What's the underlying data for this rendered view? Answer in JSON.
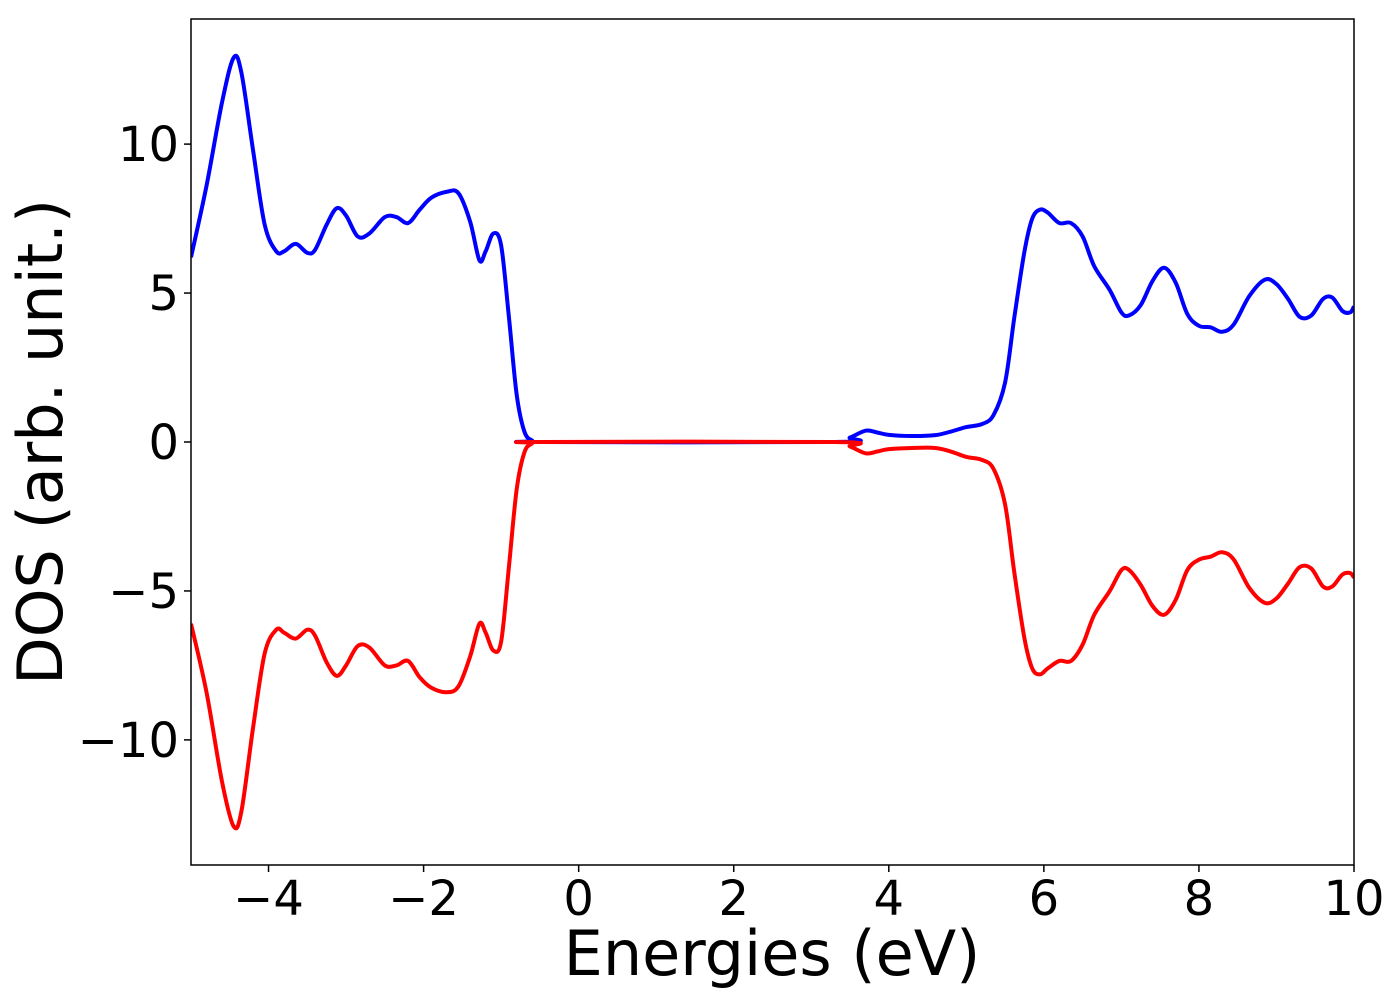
{
  "chart_data": {
    "type": "line",
    "title": "",
    "xlabel": "Energies (eV)",
    "ylabel": "DOS (arb. unit.)",
    "xlim": [
      -5,
      10
    ],
    "ylim": [
      -14.2,
      14.2
    ],
    "grid": false,
    "legend": "none",
    "x_ticks": [
      -4,
      -2,
      0,
      2,
      4,
      6,
      8,
      10
    ],
    "x_tick_labels": [
      "−4",
      "−2",
      "0",
      "2",
      "4",
      "6",
      "8",
      "10"
    ],
    "y_ticks": [
      -10,
      -5,
      0,
      5,
      10
    ],
    "y_tick_labels": [
      "−10",
      "−5",
      "0",
      "5",
      "10"
    ],
    "series": [
      {
        "color": "#0000ff",
        "points": [
          [
            -5.0,
            6.2
          ],
          [
            -4.8,
            8.6
          ],
          [
            -4.6,
            11.4
          ],
          [
            -4.45,
            12.9
          ],
          [
            -4.35,
            12.4
          ],
          [
            -4.2,
            9.8
          ],
          [
            -4.05,
            7.3
          ],
          [
            -3.9,
            6.4
          ],
          [
            -3.8,
            6.4
          ],
          [
            -3.65,
            6.65
          ],
          [
            -3.5,
            6.35
          ],
          [
            -3.4,
            6.45
          ],
          [
            -3.25,
            7.3
          ],
          [
            -3.12,
            7.85
          ],
          [
            -3.0,
            7.6
          ],
          [
            -2.85,
            6.9
          ],
          [
            -2.7,
            7.0
          ],
          [
            -2.5,
            7.55
          ],
          [
            -2.35,
            7.55
          ],
          [
            -2.2,
            7.35
          ],
          [
            -2.05,
            7.8
          ],
          [
            -1.9,
            8.2
          ],
          [
            -1.7,
            8.4
          ],
          [
            -1.55,
            8.35
          ],
          [
            -1.4,
            7.4
          ],
          [
            -1.28,
            6.1
          ],
          [
            -1.2,
            6.4
          ],
          [
            -1.1,
            7.0
          ],
          [
            -1.0,
            6.6
          ],
          [
            -0.9,
            4.2
          ],
          [
            -0.8,
            1.6
          ],
          [
            -0.7,
            0.35
          ],
          [
            -0.6,
            0.05
          ],
          [
            -0.5,
            0.0
          ],
          [
            3.3,
            0.0
          ],
          [
            3.5,
            0.15
          ],
          [
            3.7,
            0.38
          ],
          [
            3.85,
            0.32
          ],
          [
            4.0,
            0.24
          ],
          [
            4.3,
            0.2
          ],
          [
            4.6,
            0.23
          ],
          [
            4.8,
            0.35
          ],
          [
            5.0,
            0.5
          ],
          [
            5.2,
            0.6
          ],
          [
            5.35,
            0.9
          ],
          [
            5.5,
            2.0
          ],
          [
            5.62,
            4.2
          ],
          [
            5.75,
            6.4
          ],
          [
            5.85,
            7.5
          ],
          [
            5.95,
            7.8
          ],
          [
            6.05,
            7.7
          ],
          [
            6.2,
            7.35
          ],
          [
            6.35,
            7.35
          ],
          [
            6.5,
            6.9
          ],
          [
            6.65,
            5.9
          ],
          [
            6.85,
            5.1
          ],
          [
            7.0,
            4.35
          ],
          [
            7.1,
            4.25
          ],
          [
            7.25,
            4.6
          ],
          [
            7.4,
            5.4
          ],
          [
            7.55,
            5.85
          ],
          [
            7.7,
            5.35
          ],
          [
            7.85,
            4.3
          ],
          [
            8.0,
            3.9
          ],
          [
            8.15,
            3.85
          ],
          [
            8.3,
            3.7
          ],
          [
            8.45,
            3.95
          ],
          [
            8.65,
            4.9
          ],
          [
            8.85,
            5.45
          ],
          [
            9.0,
            5.3
          ],
          [
            9.15,
            4.8
          ],
          [
            9.3,
            4.2
          ],
          [
            9.45,
            4.25
          ],
          [
            9.6,
            4.8
          ],
          [
            9.72,
            4.85
          ],
          [
            9.85,
            4.4
          ],
          [
            9.95,
            4.35
          ],
          [
            10.0,
            4.55
          ]
        ]
      },
      {
        "color": "#ff0000",
        "points": [
          [
            -5.0,
            -6.1
          ],
          [
            -4.8,
            -8.4
          ],
          [
            -4.6,
            -11.4
          ],
          [
            -4.45,
            -12.9
          ],
          [
            -4.35,
            -12.4
          ],
          [
            -4.2,
            -9.6
          ],
          [
            -4.05,
            -7.1
          ],
          [
            -3.9,
            -6.3
          ],
          [
            -3.8,
            -6.4
          ],
          [
            -3.65,
            -6.6
          ],
          [
            -3.5,
            -6.3
          ],
          [
            -3.4,
            -6.5
          ],
          [
            -3.25,
            -7.4
          ],
          [
            -3.12,
            -7.85
          ],
          [
            -3.0,
            -7.5
          ],
          [
            -2.85,
            -6.85
          ],
          [
            -2.7,
            -6.9
          ],
          [
            -2.5,
            -7.5
          ],
          [
            -2.35,
            -7.5
          ],
          [
            -2.2,
            -7.35
          ],
          [
            -2.05,
            -7.9
          ],
          [
            -1.9,
            -8.25
          ],
          [
            -1.7,
            -8.4
          ],
          [
            -1.55,
            -8.2
          ],
          [
            -1.4,
            -7.2
          ],
          [
            -1.28,
            -6.1
          ],
          [
            -1.2,
            -6.4
          ],
          [
            -1.1,
            -7.0
          ],
          [
            -1.0,
            -6.7
          ],
          [
            -0.9,
            -4.2
          ],
          [
            -0.8,
            -1.6
          ],
          [
            -0.7,
            -0.35
          ],
          [
            -0.6,
            -0.05
          ],
          [
            -0.5,
            0.0
          ],
          [
            3.3,
            0.0
          ],
          [
            3.5,
            -0.15
          ],
          [
            3.7,
            -0.38
          ],
          [
            3.85,
            -0.32
          ],
          [
            4.0,
            -0.24
          ],
          [
            4.3,
            -0.2
          ],
          [
            4.6,
            -0.2
          ],
          [
            4.8,
            -0.32
          ],
          [
            5.0,
            -0.5
          ],
          [
            5.2,
            -0.6
          ],
          [
            5.35,
            -0.9
          ],
          [
            5.5,
            -2.1
          ],
          [
            5.62,
            -4.4
          ],
          [
            5.75,
            -6.6
          ],
          [
            5.85,
            -7.6
          ],
          [
            5.95,
            -7.8
          ],
          [
            6.05,
            -7.6
          ],
          [
            6.2,
            -7.35
          ],
          [
            6.35,
            -7.35
          ],
          [
            6.5,
            -6.8
          ],
          [
            6.65,
            -5.8
          ],
          [
            6.85,
            -5.0
          ],
          [
            7.0,
            -4.3
          ],
          [
            7.1,
            -4.3
          ],
          [
            7.25,
            -4.8
          ],
          [
            7.4,
            -5.5
          ],
          [
            7.55,
            -5.8
          ],
          [
            7.7,
            -5.3
          ],
          [
            7.85,
            -4.3
          ],
          [
            8.0,
            -3.95
          ],
          [
            8.15,
            -3.85
          ],
          [
            8.3,
            -3.7
          ],
          [
            8.45,
            -3.95
          ],
          [
            8.65,
            -4.9
          ],
          [
            8.85,
            -5.4
          ],
          [
            9.0,
            -5.25
          ],
          [
            9.15,
            -4.75
          ],
          [
            9.3,
            -4.2
          ],
          [
            9.45,
            -4.25
          ],
          [
            9.6,
            -4.85
          ],
          [
            9.72,
            -4.85
          ],
          [
            9.85,
            -4.45
          ],
          [
            9.95,
            -4.4
          ],
          [
            10.0,
            -4.55
          ]
        ]
      }
    ]
  }
}
